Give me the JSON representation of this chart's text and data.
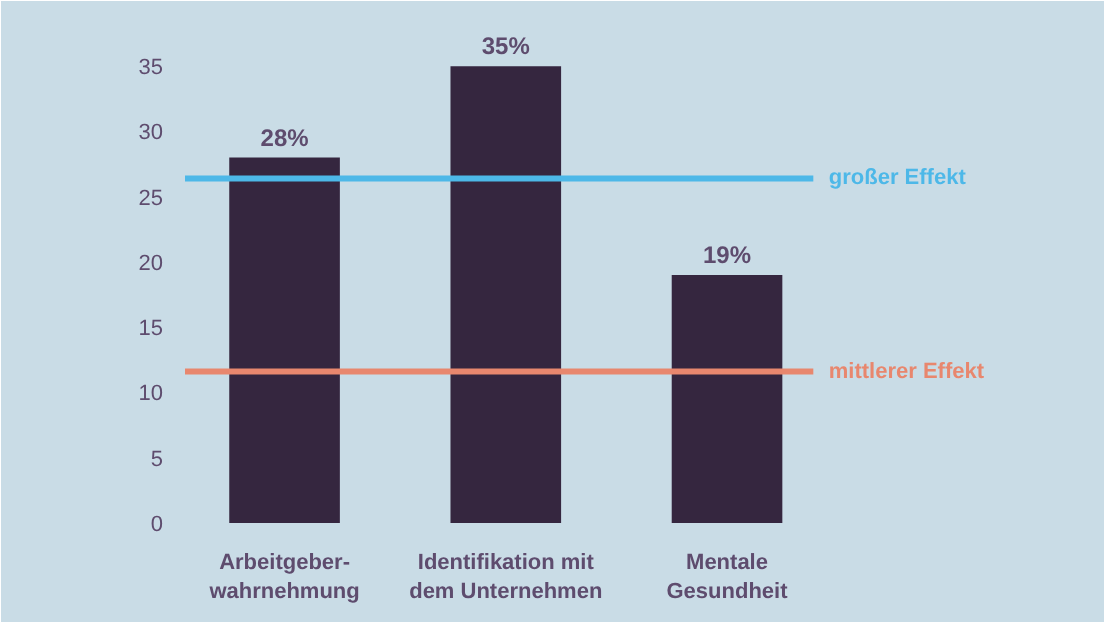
{
  "chart_data": {
    "type": "bar",
    "categories": [
      "Arbeitgeber-\nwahrnehmung",
      "Identifikation mit\ndem Unternehmen",
      "Mentale\nGesundheit"
    ],
    "values": [
      28,
      35,
      19
    ],
    "color": "#35263f",
    "value_labels": [
      "28%",
      "35%",
      "19%"
    ],
    "ylim": [
      0,
      38
    ],
    "yticks": [
      0,
      5,
      10,
      15,
      20,
      25,
      30,
      35
    ],
    "grid": false,
    "ref_lines": [
      {
        "axis": "y",
        "value": 26.4,
        "label": "großer Effekt",
        "color": "#4db8e8"
      },
      {
        "axis": "y",
        "value": 11.6,
        "label": "mittlerer Effekt",
        "color": "#e8876e"
      }
    ]
  }
}
